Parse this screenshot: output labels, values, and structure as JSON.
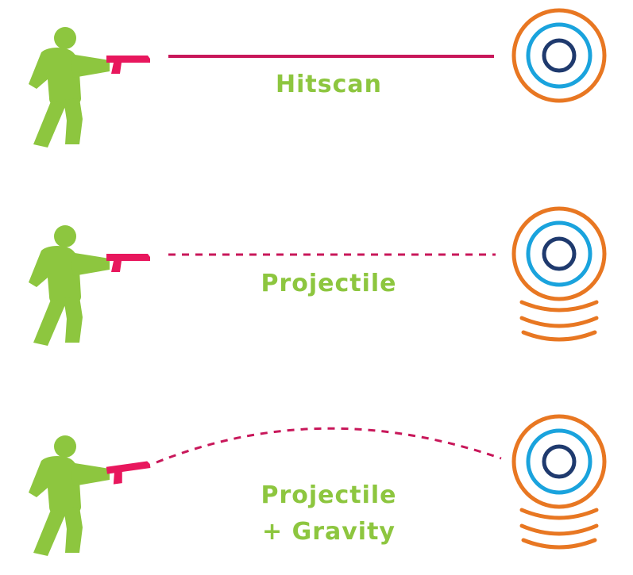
{
  "colors": {
    "figure": "#8dc63f",
    "gun": "#e8175d",
    "trajectory": "#c8175a",
    "label": "#8dc63f",
    "target_outer": "#e87722",
    "target_middle": "#1aa3dd",
    "target_inner": "#1f3a6e",
    "motion_lines": "#e87722"
  },
  "icons": {
    "shooter": "person-aiming-icon",
    "gun": "pistol-icon",
    "target": "bullseye-target-icon"
  },
  "rows": [
    {
      "id": "hitscan",
      "label_lines": [
        "Hitscan"
      ],
      "trajectory": "solid-straight",
      "target_motion_lines": 0
    },
    {
      "id": "projectile",
      "label_lines": [
        "Projectile"
      ],
      "trajectory": "dashed-straight",
      "target_motion_lines": 3
    },
    {
      "id": "projectile-gravity",
      "label_lines": [
        "Projectile",
        "+ Gravity"
      ],
      "trajectory": "dashed-arc",
      "target_motion_lines": 3
    }
  ]
}
